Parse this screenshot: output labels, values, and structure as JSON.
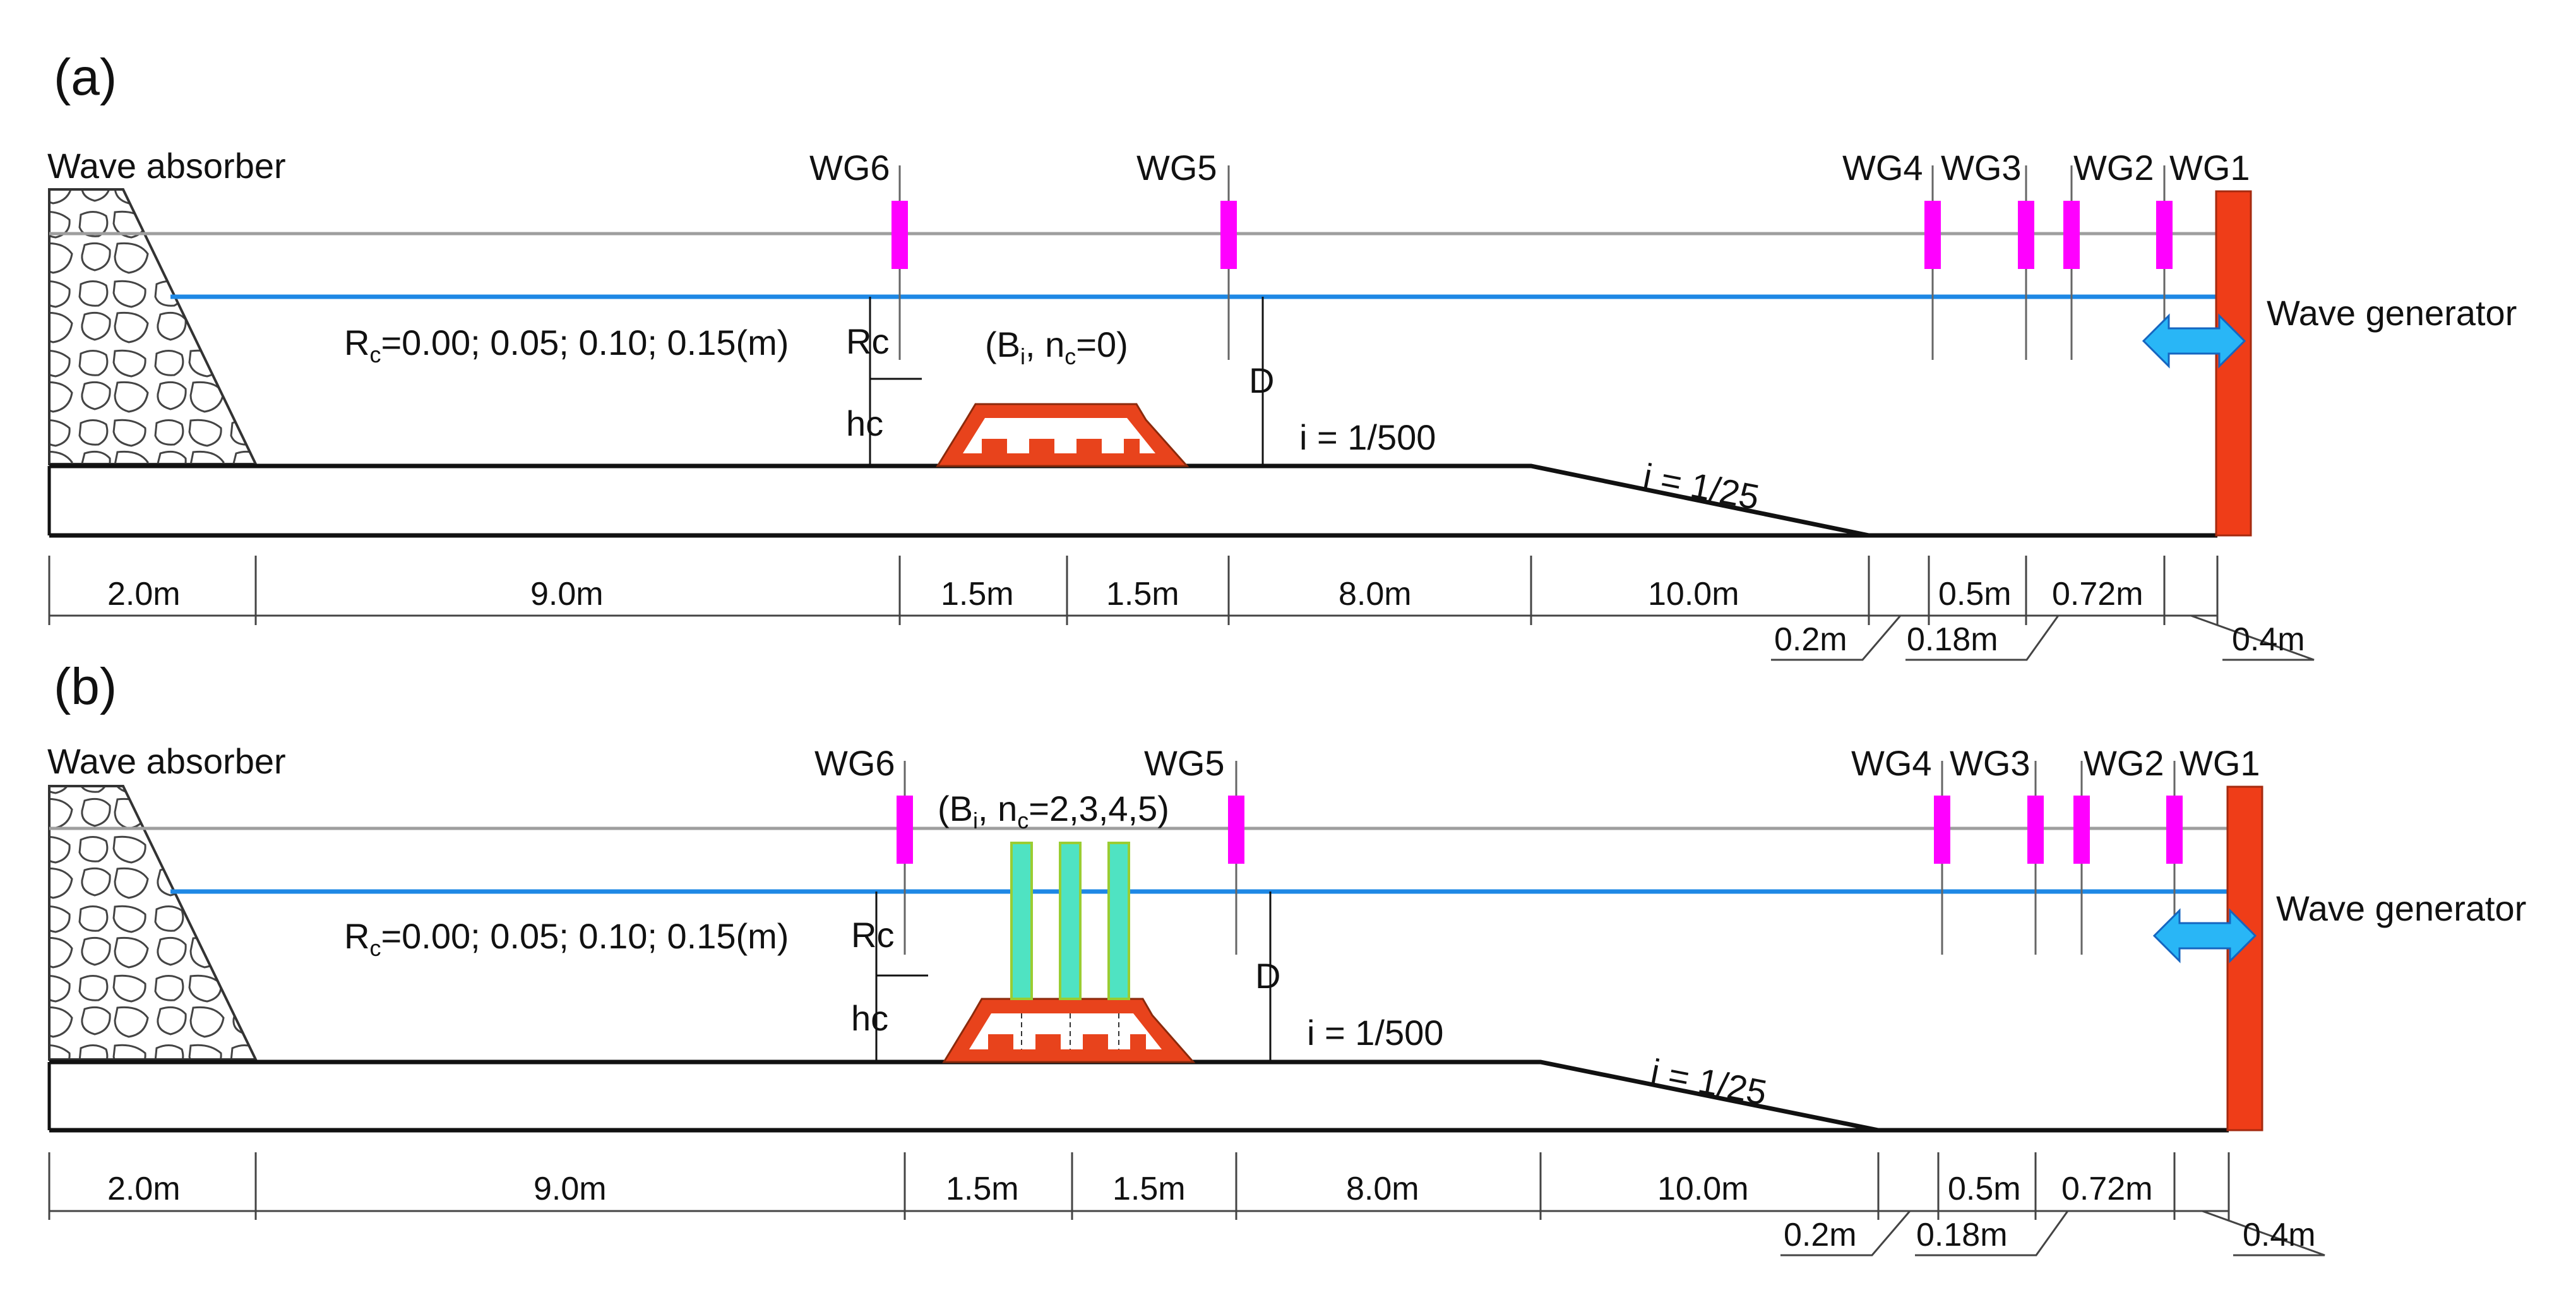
{
  "colors": {
    "water": "#1e88e5",
    "gauge": "#ff00ff",
    "structure": "#e8431c",
    "generator": "#ef3d18",
    "arrow": "#29b6f6",
    "pile_fill": "#4fe3c2",
    "pile_edge": "#9acd32",
    "line": "#111111",
    "grey_line": "#9e9e9e"
  },
  "panels": [
    {
      "label": "(a)",
      "absorber_label": "Wave absorber",
      "generator_label": "Wave generator",
      "gauges": [
        "WG6",
        "WG5",
        "WG4",
        "WG3",
        "WG2",
        "WG1"
      ],
      "rc_values_main": "R",
      "rc_values_sub": "c",
      "rc_values_rest": "=0.00; 0.05; 0.10; 0.15(m)",
      "rc_label": "Rc",
      "hc_label": "hc",
      "d_label": "D",
      "structure_main": "(B",
      "structure_sub1": "i",
      "structure_mid": ", n",
      "structure_sub2": "c",
      "structure_rest": "=0)",
      "slope_flat": "i = 1/500",
      "slope_steep": "i = 1/25",
      "dimensions_top": [
        "2.0m",
        "9.0m",
        "1.5m",
        "1.5m",
        "8.0m",
        "10.0m",
        "0.5m",
        "0.72m"
      ],
      "dimensions_callout": [
        "0.2m",
        "0.18m",
        "0.4m"
      ]
    },
    {
      "label": "(b)",
      "absorber_label": "Wave absorber",
      "generator_label": "Wave generator",
      "gauges": [
        "WG6",
        "WG5",
        "WG4",
        "WG3",
        "WG2",
        "WG1"
      ],
      "rc_values_main": "R",
      "rc_values_sub": "c",
      "rc_values_rest": "=0.00; 0.05; 0.10; 0.15(m)",
      "rc_label": "Rc",
      "hc_label": "hc",
      "d_label": "D",
      "structure_main": "(B",
      "structure_sub1": "i",
      "structure_mid": ", n",
      "structure_sub2": "c",
      "structure_rest": "=2,3,4,5)",
      "slope_flat": "i = 1/500",
      "slope_steep": "i = 1/25",
      "dimensions_top": [
        "2.0m",
        "9.0m",
        "1.5m",
        "1.5m",
        "8.0m",
        "10.0m",
        "0.5m",
        "0.72m"
      ],
      "dimensions_callout": [
        "0.2m",
        "0.18m",
        "0.4m"
      ]
    }
  ]
}
